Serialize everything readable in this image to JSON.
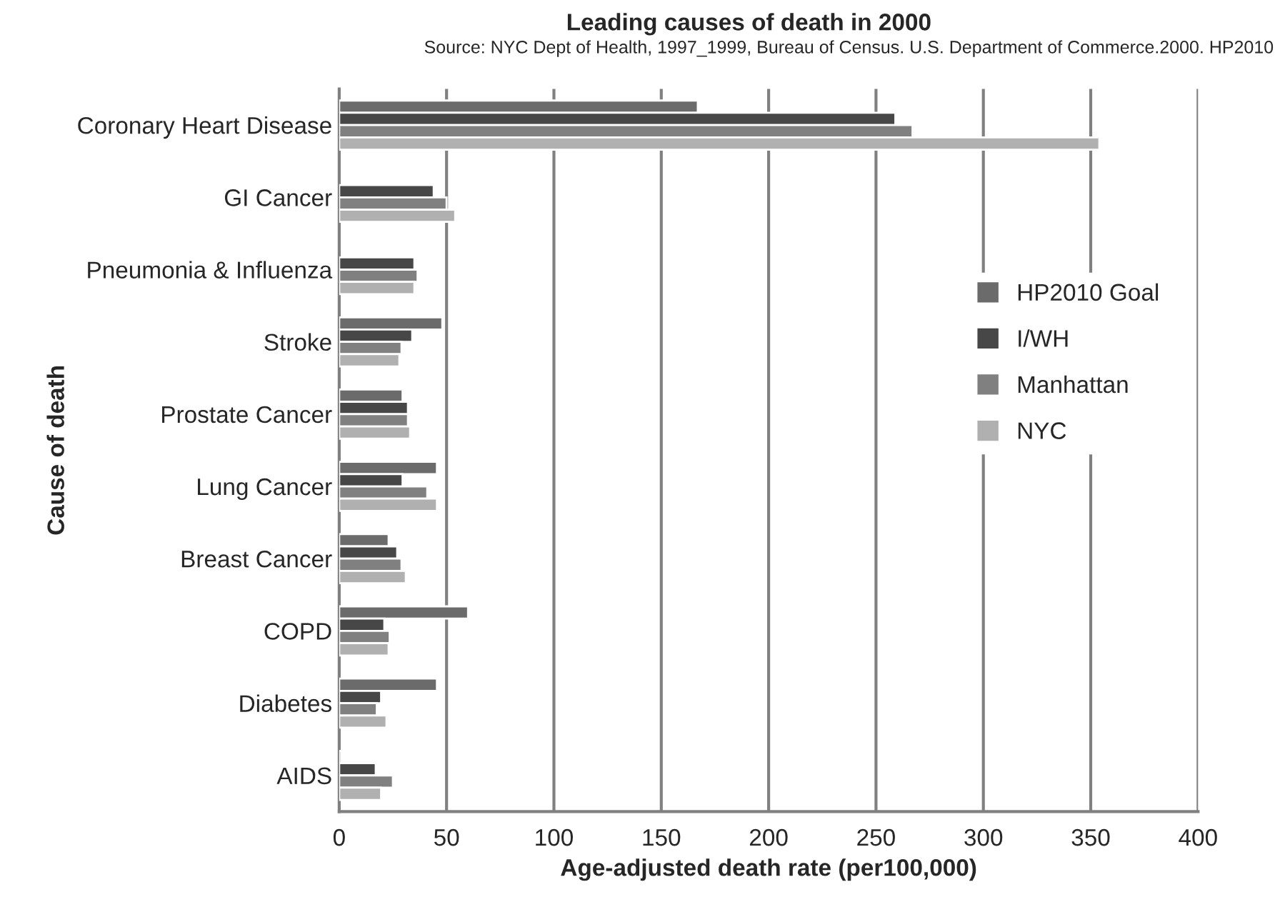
{
  "chart_data": {
    "type": "bar",
    "orientation": "horizontal",
    "title": "Leading causes of death in 2000",
    "annotations": [
      "Source: NYC Dept of Health, 1997_1999, Bureau of Census. U.S. Department of Commerce.2000. HP2010"
    ],
    "xlabel": "Age-adjusted death rate (per100,000)",
    "ylabel": "Cause of death",
    "categories": [
      "Coronary Heart Disease",
      "GI Cancer",
      "Pneumonia & Influenza",
      "Stroke",
      "Prostate Cancer",
      "Lung Cancer",
      "Breast Cancer",
      "COPD",
      "Diabetes",
      "AIDS"
    ],
    "series": [
      {
        "name": "HP2010 Goal",
        "color": "#6b6b6b",
        "values": [
          167,
          null,
          null,
          48,
          29.5,
          45.5,
          23,
          60,
          45.5,
          1
        ]
      },
      {
        "name": "I/WH",
        "color": "#474747",
        "values": [
          259,
          44,
          35,
          34,
          32,
          29.5,
          27,
          21,
          19.5,
          17
        ]
      },
      {
        "name": "Manhattan",
        "color": "#808080",
        "values": [
          267,
          50,
          36.5,
          29,
          32,
          41,
          29,
          23.5,
          17.5,
          25
        ]
      },
      {
        "name": "NYC",
        "color": "#b0b0b0",
        "values": [
          354,
          54,
          35,
          28,
          33,
          45.5,
          31,
          23,
          22,
          19.5
        ]
      }
    ],
    "xlim": [
      0,
      400
    ],
    "xticks": [
      0,
      50,
      100,
      150,
      200,
      250,
      300,
      350,
      400
    ],
    "grid": "x",
    "legend": "right"
  }
}
